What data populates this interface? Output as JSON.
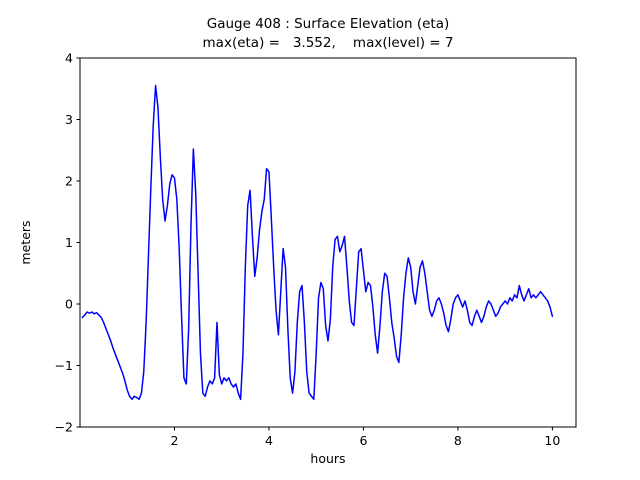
{
  "figure": {
    "background": "#ffffff",
    "axis_color": "#000000"
  },
  "chart_data": {
    "type": "line",
    "title": "Gauge 408 : Surface Elevation (eta)",
    "subtitle": "max(eta) =   3.552,    max(level) = 7",
    "xlabel": "hours",
    "ylabel": "meters",
    "xlim": [
      0,
      10.5
    ],
    "ylim": [
      -2,
      4
    ],
    "xticks": [
      2,
      4,
      6,
      8,
      10
    ],
    "yticks": [
      -2,
      -1,
      0,
      1,
      2,
      3,
      4
    ],
    "grid": false,
    "legend": null,
    "max_eta": 3.552,
    "max_level": 7,
    "series": [
      {
        "name": "eta",
        "color": "#0000ff",
        "x_start": 0.05,
        "x_step": 0.05,
        "y": [
          -0.22,
          -0.18,
          -0.13,
          -0.15,
          -0.13,
          -0.16,
          -0.14,
          -0.18,
          -0.22,
          -0.3,
          -0.4,
          -0.5,
          -0.6,
          -0.72,
          -0.82,
          -0.92,
          -1.02,
          -1.12,
          -1.25,
          -1.4,
          -1.5,
          -1.55,
          -1.5,
          -1.52,
          -1.55,
          -1.45,
          -1.1,
          -0.3,
          0.8,
          1.9,
          2.9,
          3.552,
          3.2,
          2.4,
          1.7,
          1.35,
          1.6,
          1.95,
          2.1,
          2.05,
          1.7,
          0.9,
          -0.2,
          -1.2,
          -1.3,
          -0.4,
          1.3,
          2.52,
          1.8,
          0.5,
          -0.8,
          -1.45,
          -1.5,
          -1.35,
          -1.25,
          -1.3,
          -1.2,
          -0.3,
          -1.15,
          -1.3,
          -1.2,
          -1.25,
          -1.2,
          -1.3,
          -1.35,
          -1.3,
          -1.45,
          -1.55,
          -0.8,
          0.6,
          1.6,
          1.85,
          1.1,
          0.45,
          0.75,
          1.2,
          1.5,
          1.7,
          2.2,
          2.15,
          1.4,
          0.6,
          -0.1,
          -0.5,
          0.2,
          0.9,
          0.6,
          -0.4,
          -1.2,
          -1.45,
          -1.1,
          -0.3,
          0.2,
          0.3,
          -0.3,
          -1.1,
          -1.45,
          -1.5,
          -1.55,
          -0.8,
          0.1,
          0.35,
          0.25,
          -0.35,
          -0.6,
          -0.25,
          0.6,
          1.05,
          1.1,
          0.85,
          0.95,
          1.1,
          0.6,
          0.05,
          -0.3,
          -0.35,
          0.25,
          0.85,
          0.9,
          0.55,
          0.2,
          0.35,
          0.3,
          -0.05,
          -0.5,
          -0.8,
          -0.35,
          0.2,
          0.5,
          0.45,
          0.1,
          -0.3,
          -0.55,
          -0.85,
          -0.95,
          -0.5,
          0.1,
          0.5,
          0.75,
          0.6,
          0.2,
          0,
          0.3,
          0.6,
          0.7,
          0.5,
          0.2,
          -0.1,
          -0.2,
          -0.1,
          0.05,
          0.1,
          0,
          -0.15,
          -0.35,
          -0.45,
          -0.25,
          0,
          0.1,
          0.15,
          0.05,
          -0.05,
          0.05,
          -0.1,
          -0.3,
          -0.35,
          -0.2,
          -0.1,
          -0.2,
          -0.3,
          -0.2,
          -0.05,
          0.05,
          0,
          -0.1,
          -0.2,
          -0.15,
          -0.05,
          0,
          0.05,
          0,
          0.1,
          0.05,
          0.15,
          0.1,
          0.3,
          0.15,
          0.05,
          0.15,
          0.25,
          0.1,
          0.15,
          0.1,
          0.15,
          0.2,
          0.15,
          0.1,
          0.05,
          -0.05,
          -0.2
        ]
      }
    ]
  }
}
